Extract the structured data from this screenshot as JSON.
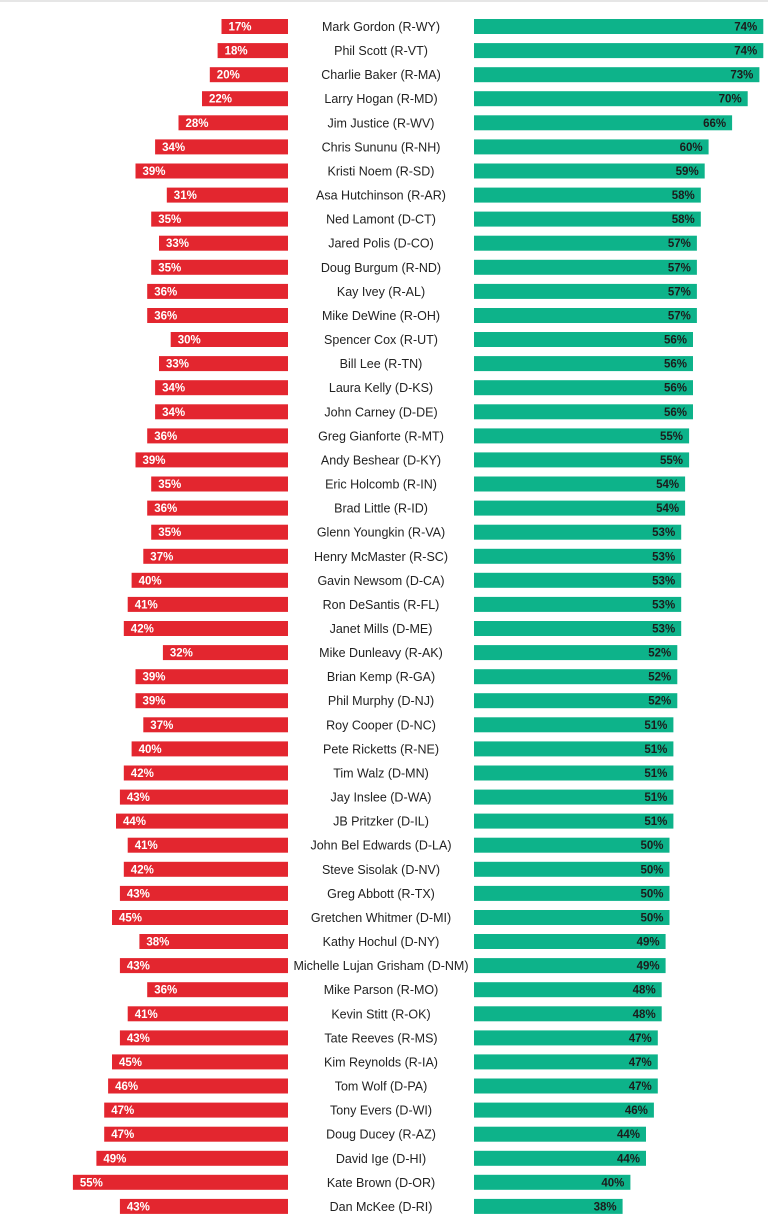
{
  "chart_data": {
    "type": "bar",
    "layout": "diverging-horizontal",
    "categories": [
      "Mark Gordon (R-WY)",
      "Phil Scott (R-VT)",
      "Charlie Baker (R-MA)",
      "Larry Hogan (R-MD)",
      "Jim Justice (R-WV)",
      "Chris Sununu (R-NH)",
      "Kristi Noem (R-SD)",
      "Asa Hutchinson (R-AR)",
      "Ned Lamont (D-CT)",
      "Jared Polis (D-CO)",
      "Doug Burgum (R-ND)",
      "Kay Ivey (R-AL)",
      "Mike DeWine (R-OH)",
      "Spencer Cox (R-UT)",
      "Bill Lee (R-TN)",
      "Laura Kelly (D-KS)",
      "John Carney (D-DE)",
      "Greg Gianforte (R-MT)",
      "Andy Beshear (D-KY)",
      "Eric Holcomb (R-IN)",
      "Brad Little (R-ID)",
      "Glenn Youngkin (R-VA)",
      "Henry McMaster (R-SC)",
      "Gavin Newsom (D-CA)",
      "Ron DeSantis (R-FL)",
      "Janet Mills (D-ME)",
      "Mike Dunleavy (R-AK)",
      "Brian Kemp (R-GA)",
      "Phil Murphy (D-NJ)",
      "Roy Cooper (D-NC)",
      "Pete Ricketts (R-NE)",
      "Tim Walz (D-MN)",
      "Jay Inslee (D-WA)",
      "JB Pritzker (D-IL)",
      "John Bel Edwards (D-LA)",
      "Steve Sisolak (D-NV)",
      "Greg Abbott (R-TX)",
      "Gretchen Whitmer (D-MI)",
      "Kathy Hochul (D-NY)",
      "Michelle Lujan Grisham (D-NM)",
      "Mike Parson (R-MO)",
      "Kevin Stitt (R-OK)",
      "Tate Reeves (R-MS)",
      "Kim Reynolds (R-IA)",
      "Tom Wolf (D-PA)",
      "Tony Evers (D-WI)",
      "Doug Ducey (R-AZ)",
      "David Ige (D-HI)",
      "Kate Brown (D-OR)",
      "Dan McKee (D-RI)"
    ],
    "series": [
      {
        "color": "#e3262f",
        "values": [
          17,
          18,
          20,
          22,
          28,
          34,
          39,
          31,
          35,
          33,
          35,
          36,
          36,
          30,
          33,
          34,
          34,
          36,
          39,
          35,
          36,
          35,
          37,
          40,
          41,
          42,
          32,
          39,
          39,
          37,
          40,
          42,
          43,
          44,
          41,
          42,
          43,
          45,
          38,
          43,
          36,
          41,
          43,
          45,
          46,
          47,
          47,
          49,
          55,
          43
        ]
      },
      {
        "color": "#0db38a",
        "values": [
          74,
          74,
          73,
          70,
          66,
          60,
          59,
          58,
          58,
          57,
          57,
          57,
          57,
          56,
          56,
          56,
          56,
          55,
          55,
          54,
          54,
          53,
          53,
          53,
          53,
          53,
          52,
          52,
          52,
          51,
          51,
          51,
          51,
          51,
          50,
          50,
          50,
          50,
          49,
          49,
          48,
          48,
          47,
          47,
          47,
          46,
          44,
          44,
          40,
          38
        ]
      }
    ],
    "value_suffix": "%",
    "title": "",
    "xlabel": "",
    "ylabel": ""
  }
}
